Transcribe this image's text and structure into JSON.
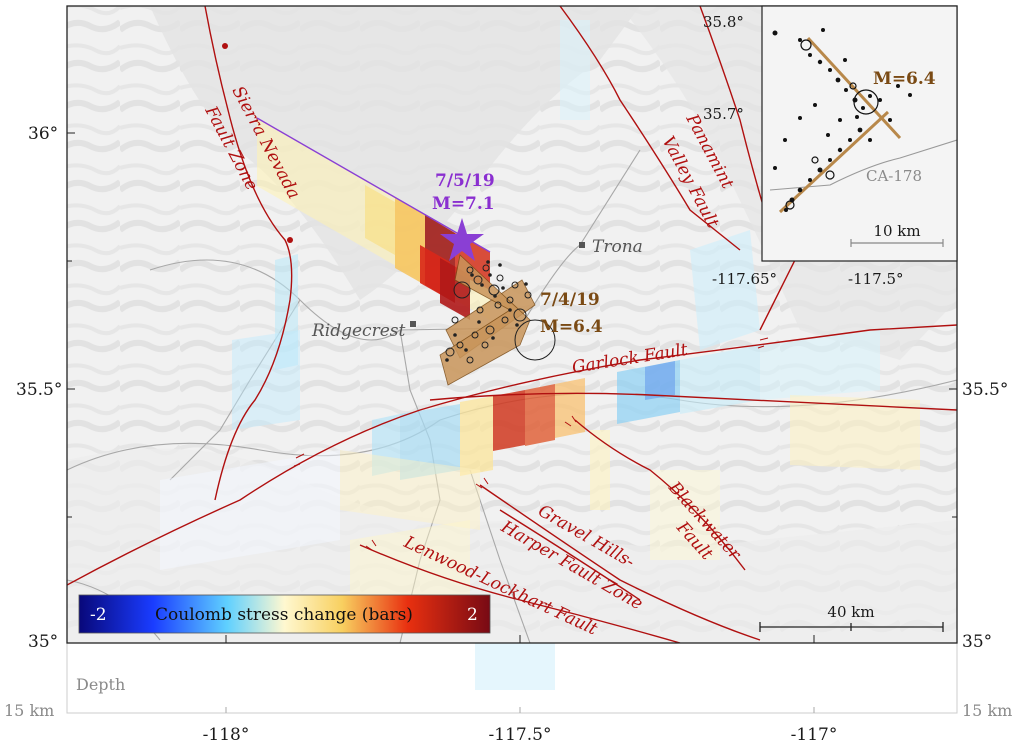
{
  "axes": {
    "lat_left": [
      "36°",
      "35.5°",
      "35°"
    ],
    "lat_right": [
      "35.5°",
      "35°"
    ],
    "lon_bottom": [
      "-118°",
      "-117.5°",
      "-117°"
    ],
    "depth_label_left": "15 km",
    "depth_label_right": "15 km",
    "depth_panel_label": "Depth"
  },
  "faults": {
    "sierra_nevada_line1": "Sierra Nevada",
    "sierra_nevada_line2": "Fault Zone",
    "panamint_line1": "Panamint",
    "panamint_line2": "Valley Fault",
    "garlock": "Garlock Fault",
    "blackwater_line1": "Blackwater",
    "blackwater_line2": "Fault",
    "gravel_hills_line1": "Gravel Hills-",
    "gravel_hills_line2": "Harper Fault Zone",
    "lenwood": "Lenwood-Lockhart Fault"
  },
  "towns": {
    "trona": "Trona",
    "ridgecrest": "Ridgecrest"
  },
  "earthquakes": {
    "mainshock_date": "7/5/19",
    "mainshock_mag": "M=7.1",
    "foreshock_date": "7/4/19",
    "foreshock_mag": "M=6.4"
  },
  "colorbar": {
    "min_label": "-2",
    "max_label": "2",
    "title": "Coulomb stress change (bars)",
    "min_value": -2,
    "max_value": 2
  },
  "scalebar": {
    "label": "40 km"
  },
  "inset": {
    "lat_labels": [
      "35.8°",
      "35.7°"
    ],
    "lon_labels": [
      "-117.65°",
      "-117.5°"
    ],
    "quake_label": "M=6.4",
    "road_label": "CA-178",
    "scale_label": "10 km"
  },
  "colors": {
    "fault": "#b01010",
    "mainshock": "#8a3fd4",
    "rupture_64": "#c9955a",
    "inset_rupture": "#b8884a",
    "frame": "#222222"
  }
}
